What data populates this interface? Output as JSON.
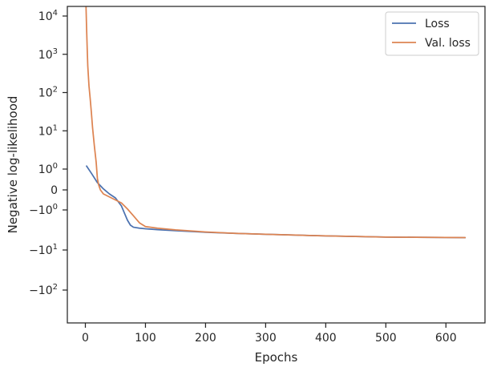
{
  "chart_data": {
    "type": "line",
    "xlabel": "Epochs",
    "ylabel": "Negative log-likelihood",
    "xlim": [
      -30,
      665
    ],
    "x_ticks": [
      0,
      100,
      200,
      300,
      400,
      500,
      600
    ],
    "y_scale": "symlog",
    "y_ticks": [
      {
        "value": 10000,
        "base": "10",
        "exp": "4"
      },
      {
        "value": 1000,
        "base": "10",
        "exp": "3"
      },
      {
        "value": 100,
        "base": "10",
        "exp": "2"
      },
      {
        "value": 10,
        "base": "10",
        "exp": "1"
      },
      {
        "value": 1,
        "base": "10",
        "exp": "0"
      },
      {
        "value": 0,
        "text": "0"
      },
      {
        "value": -1,
        "base": "−10",
        "exp": "0"
      },
      {
        "value": -10,
        "base": "−10",
        "exp": "1"
      },
      {
        "value": -100,
        "base": "−10",
        "exp": "2"
      }
    ],
    "grid": false,
    "legend_position": "top-right",
    "series": [
      {
        "name": "Loss",
        "color": "#4c72b0",
        "points": [
          [
            2,
            1.2
          ],
          [
            10,
            0.8
          ],
          [
            20,
            0.35
          ],
          [
            30,
            0.05
          ],
          [
            40,
            -0.2
          ],
          [
            50,
            -0.4
          ],
          [
            60,
            -0.8
          ],
          [
            65,
            -1.2
          ],
          [
            70,
            -1.8
          ],
          [
            75,
            -2.4
          ],
          [
            80,
            -2.7
          ],
          [
            90,
            -2.85
          ],
          [
            100,
            -2.95
          ],
          [
            120,
            -3.1
          ],
          [
            150,
            -3.3
          ],
          [
            200,
            -3.6
          ],
          [
            250,
            -3.85
          ],
          [
            300,
            -4.05
          ],
          [
            350,
            -4.25
          ],
          [
            400,
            -4.45
          ],
          [
            450,
            -4.6
          ],
          [
            500,
            -4.75
          ],
          [
            550,
            -4.82
          ],
          [
            600,
            -4.88
          ],
          [
            632,
            -4.92
          ]
        ]
      },
      {
        "name": "Val. loss",
        "color": "#dd8452",
        "points": [
          [
            1,
            20000
          ],
          [
            2,
            5000
          ],
          [
            3,
            1500
          ],
          [
            4,
            500
          ],
          [
            6,
            150
          ],
          [
            8,
            70
          ],
          [
            10,
            30
          ],
          [
            12,
            12
          ],
          [
            15,
            4
          ],
          [
            18,
            1.5
          ],
          [
            20,
            0.55
          ],
          [
            22,
            0.25
          ],
          [
            25,
            0.0
          ],
          [
            30,
            -0.2
          ],
          [
            40,
            -0.35
          ],
          [
            50,
            -0.5
          ],
          [
            60,
            -0.65
          ],
          [
            70,
            -0.95
          ],
          [
            80,
            -1.4
          ],
          [
            90,
            -2.1
          ],
          [
            100,
            -2.6
          ],
          [
            120,
            -2.85
          ],
          [
            150,
            -3.15
          ],
          [
            200,
            -3.55
          ],
          [
            250,
            -3.85
          ],
          [
            300,
            -4.05
          ],
          [
            350,
            -4.25
          ],
          [
            400,
            -4.45
          ],
          [
            450,
            -4.6
          ],
          [
            500,
            -4.75
          ],
          [
            550,
            -4.82
          ],
          [
            600,
            -4.88
          ],
          [
            632,
            -4.9
          ]
        ]
      }
    ]
  }
}
